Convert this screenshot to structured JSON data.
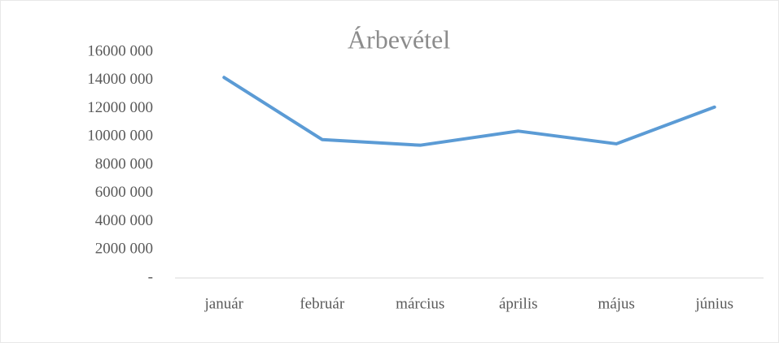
{
  "chart_data": {
    "type": "line",
    "title": "Árbevétel",
    "categories": [
      "január",
      "február",
      "március",
      "április",
      "május",
      "június"
    ],
    "series": [
      {
        "name": "Árbevétel",
        "color": "#5b9bd5",
        "values": [
          14200000,
          9800000,
          9400000,
          10400000,
          9500000,
          12100000
        ]
      }
    ],
    "ylim": [
      0,
      16000000
    ],
    "yticks": [
      {
        "value": 0,
        "label": "-"
      },
      {
        "value": 2000000,
        "label": "2000 000"
      },
      {
        "value": 4000000,
        "label": "4000 000"
      },
      {
        "value": 6000000,
        "label": "6000 000"
      },
      {
        "value": 8000000,
        "label": "8000 000"
      },
      {
        "value": 10000000,
        "label": "10000 000"
      },
      {
        "value": 12000000,
        "label": "12000 000"
      },
      {
        "value": 14000000,
        "label": "14000 000"
      },
      {
        "value": 16000000,
        "label": "16000 000"
      }
    ]
  }
}
